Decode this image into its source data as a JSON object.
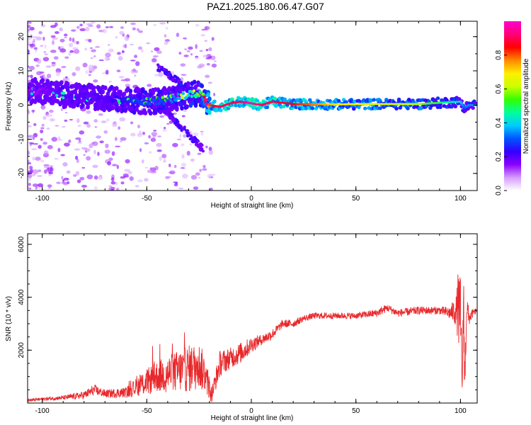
{
  "title": "PAZ1.2025.180.06.47.G07",
  "colorbar": {
    "label": "Normalized spectral amplitude",
    "ticks": [
      "0.0",
      "0.2",
      "0.4",
      "0.6",
      "0.8"
    ],
    "tick_values": [
      0.0,
      0.2,
      0.4,
      0.6,
      0.8
    ],
    "colors": [
      "#ffffff",
      "#d59cff",
      "#8a00ff",
      "#3300ff",
      "#0055ff",
      "#00ccff",
      "#00ff99",
      "#33ff00",
      "#ccff00",
      "#ffee00",
      "#ff8800",
      "#ff0000",
      "#ff0077",
      "#ff00cc"
    ]
  },
  "chart_data": [
    {
      "type": "heatmap",
      "xlabel": "Height of straight line (km)",
      "ylabel": "Frequency (Hz)",
      "xlim": [
        -107,
        108
      ],
      "ylim": [
        -25,
        24.5
      ],
      "xticks": [
        -100,
        -50,
        0,
        50,
        100
      ],
      "yticks": [
        -20,
        -10,
        0,
        10,
        20
      ],
      "grid": false,
      "ridge": {
        "x": [
          -107,
          -100,
          -90,
          -80,
          -70,
          -60,
          -50,
          -40,
          -30,
          -24,
          -20,
          -15,
          -10,
          -5,
          0,
          5,
          10,
          20,
          40,
          60,
          80,
          100,
          102,
          104,
          108
        ],
        "y": [
          4,
          4,
          3,
          2.5,
          2,
          1.5,
          1,
          1.5,
          3,
          3.5,
          0,
          -0.5,
          0.5,
          1,
          0.5,
          0,
          1,
          0.3,
          0.2,
          0.3,
          0.3,
          1,
          -1,
          0,
          0
        ],
        "amplitude": [
          0.15,
          0.15,
          0.2,
          0.2,
          0.2,
          0.25,
          0.3,
          0.3,
          0.4,
          0.5,
          0.8,
          0.9,
          0.9,
          0.9,
          1.0,
          0.9,
          0.9,
          0.85,
          0.7,
          0.65,
          0.6,
          0.4,
          0.3,
          0.35,
          0.35
        ]
      }
    },
    {
      "type": "line",
      "xlabel": "Height of straight line (km)",
      "ylabel": "SNR (10 * v/v)",
      "xlim": [
        -107,
        108
      ],
      "ylim": [
        0,
        6400
      ],
      "xticks": [
        -100,
        -50,
        0,
        50,
        100
      ],
      "yticks": [
        2000,
        4000,
        6000
      ],
      "grid": false,
      "series": [
        {
          "color": "#e8282b",
          "x": [
            -107,
            -100,
            -90,
            -80,
            -75,
            -70,
            -60,
            -50,
            -45,
            -40,
            -35,
            -30,
            -25,
            -22,
            -19,
            -15,
            -10,
            -5,
            0,
            5,
            10,
            15,
            20,
            25,
            30,
            40,
            50,
            60,
            65,
            70,
            80,
            90,
            95,
            98,
            99,
            100,
            101,
            101.5,
            102,
            103,
            104,
            106,
            108
          ],
          "y": [
            100,
            150,
            200,
            300,
            500,
            350,
            400,
            800,
            1000,
            1100,
            1200,
            1300,
            1400,
            1100,
            300,
            1500,
            1700,
            1900,
            2200,
            2400,
            2600,
            3000,
            3000,
            3200,
            3300,
            3300,
            3300,
            3400,
            3600,
            3400,
            3500,
            3500,
            3400,
            3500,
            3600,
            3300,
            700,
            4500,
            600,
            3700,
            3200,
            3400,
            3500
          ],
          "noise_amplitude": [
            60,
            60,
            80,
            150,
            200,
            150,
            200,
            500,
            600,
            700,
            800,
            900,
            900,
            700,
            300,
            500,
            400,
            400,
            300,
            200,
            200,
            150,
            150,
            120,
            120,
            120,
            120,
            150,
            150,
            150,
            150,
            150,
            250,
            600,
            1500,
            1500,
            800,
            1500,
            800,
            600,
            300,
            150,
            100
          ]
        }
      ]
    }
  ]
}
